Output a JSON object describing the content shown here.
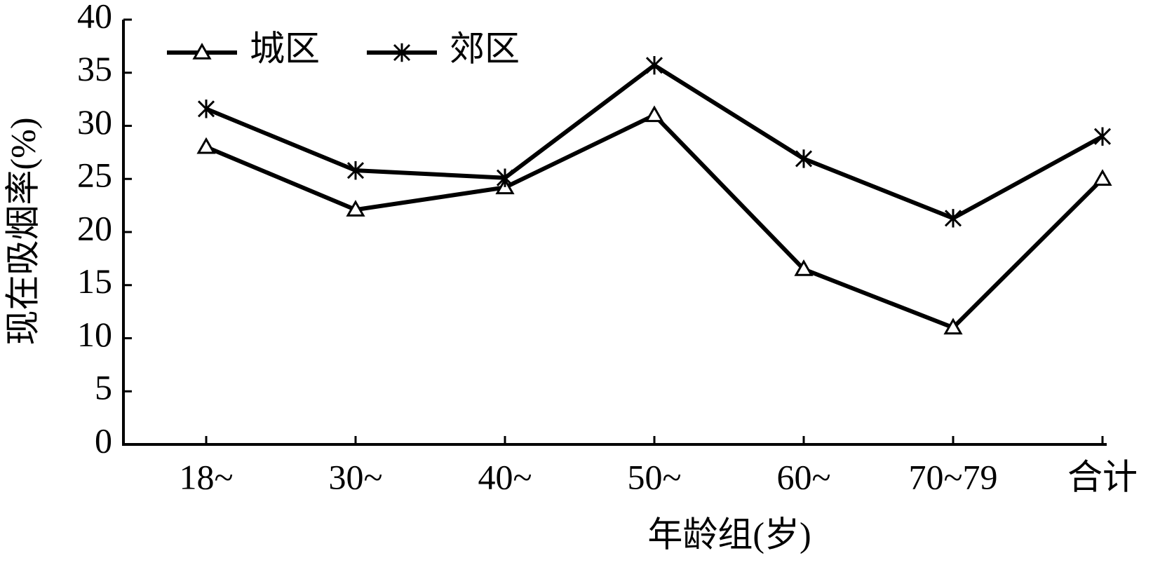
{
  "chart_data": {
    "type": "line",
    "xlabel": "年龄组(岁)",
    "ylabel": "现在吸烟率(%)",
    "categories": [
      "18~",
      "30~",
      "40~",
      "50~",
      "60~",
      "70~79",
      "合计"
    ],
    "series": [
      {
        "name": "城区",
        "color": "#000000",
        "marker": "triangle",
        "values": [
          28,
          22.1,
          24.2,
          31,
          16.5,
          11,
          25
        ]
      },
      {
        "name": "郊区",
        "color": "#000000",
        "marker": "star",
        "values": [
          31.6,
          25.8,
          25.1,
          35.7,
          26.9,
          21.3,
          29
        ]
      }
    ],
    "ylim": [
      0,
      40
    ],
    "yticks": [
      0,
      5,
      10,
      15,
      20,
      25,
      30,
      35,
      40
    ],
    "legend": "upper left"
  }
}
